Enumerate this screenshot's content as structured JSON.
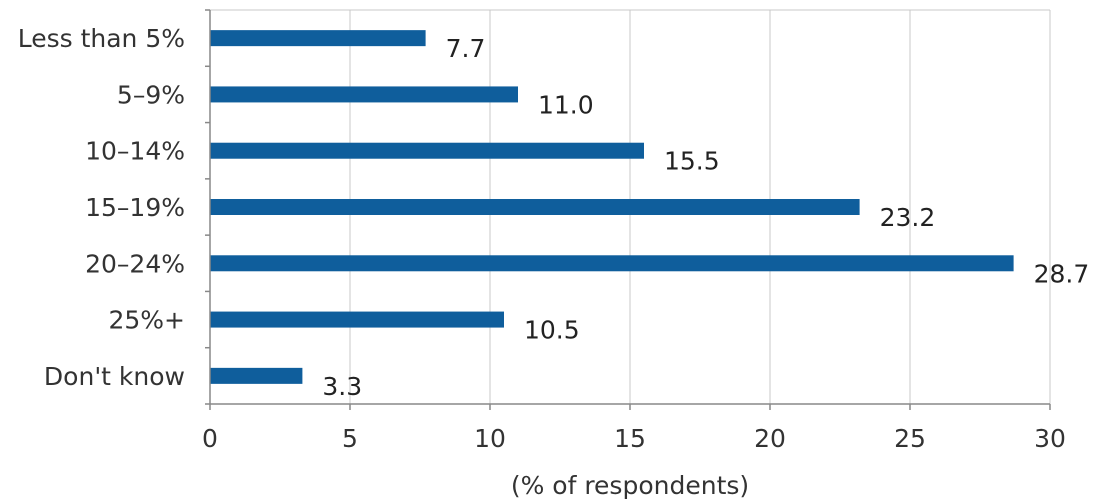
{
  "chart_data": {
    "type": "bar",
    "orientation": "horizontal",
    "categories": [
      "Less than 5%",
      "5–9%",
      "10–14%",
      "15–19%",
      "20–24%",
      "25%+",
      "Don't know"
    ],
    "values": [
      7.7,
      11.0,
      15.5,
      23.2,
      28.7,
      10.5,
      3.3
    ],
    "value_labels": [
      "7.7",
      "11.0",
      "15.5",
      "23.2",
      "28.7",
      "10.5",
      "3.3"
    ],
    "title": "",
    "xlabel": "(% of respondents)",
    "ylabel": "",
    "xlim": [
      0,
      30
    ],
    "x_ticks": [
      "0",
      "5",
      "10",
      "15",
      "20",
      "25",
      "30"
    ],
    "grid": "vertical",
    "legend": "none",
    "bar_color": "#0f5e9c",
    "grid_color": "#c8c8c8",
    "axis_color": "#888888"
  }
}
